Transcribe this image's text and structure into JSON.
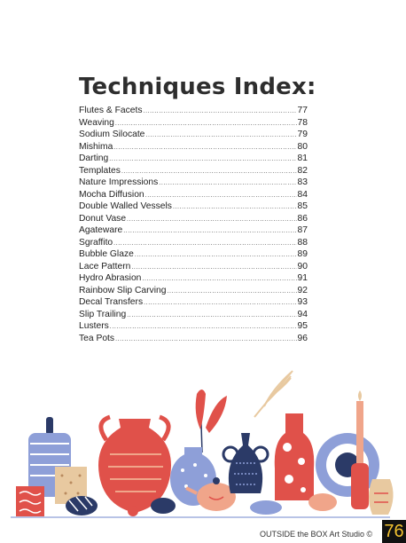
{
  "title": "Techniques Index:",
  "entries": [
    {
      "label": "Flutes & Facets",
      "page": "77"
    },
    {
      "label": "Weaving",
      "page": "78"
    },
    {
      "label": "Sodium Silocate",
      "page": "79"
    },
    {
      "label": "Mishima",
      "page": "80"
    },
    {
      "label": "Darting",
      "page": "81"
    },
    {
      "label": "Templates",
      "page": "82"
    },
    {
      "label": "Nature Impressions",
      "page": "83"
    },
    {
      "label": "Mocha Diffusion",
      "page": "84"
    },
    {
      "label": "Double Walled Vessels",
      "page": "85"
    },
    {
      "label": "Donut Vase",
      "page": "86"
    },
    {
      "label": "Agateware",
      "page": "87"
    },
    {
      "label": "Sgraffito",
      "page": "88"
    },
    {
      "label": "Bubble Glaze",
      "page": "89"
    },
    {
      "label": "Lace Pattern",
      "page": "90"
    },
    {
      "label": "Hydro Abrasion",
      "page": "91"
    },
    {
      "label": "Rainbow Slip Carving",
      "page": "92"
    },
    {
      "label": "Decal Transfers",
      "page": "93"
    },
    {
      "label": "Slip Trailing",
      "page": "94"
    },
    {
      "label": "Lusters",
      "page": "95"
    },
    {
      "label": "Tea Pots",
      "page": "96"
    }
  ],
  "footer": {
    "credit": "OUTSIDE the BOX Art Studio ©",
    "page_number": "76"
  },
  "colors": {
    "coral": "#e0514a",
    "navy": "#2b3a67",
    "periwinkle": "#8e9fd8",
    "peach": "#f0a58a",
    "sand": "#e8c9a0",
    "badge_bg": "#111111",
    "badge_text": "#f2c230"
  }
}
